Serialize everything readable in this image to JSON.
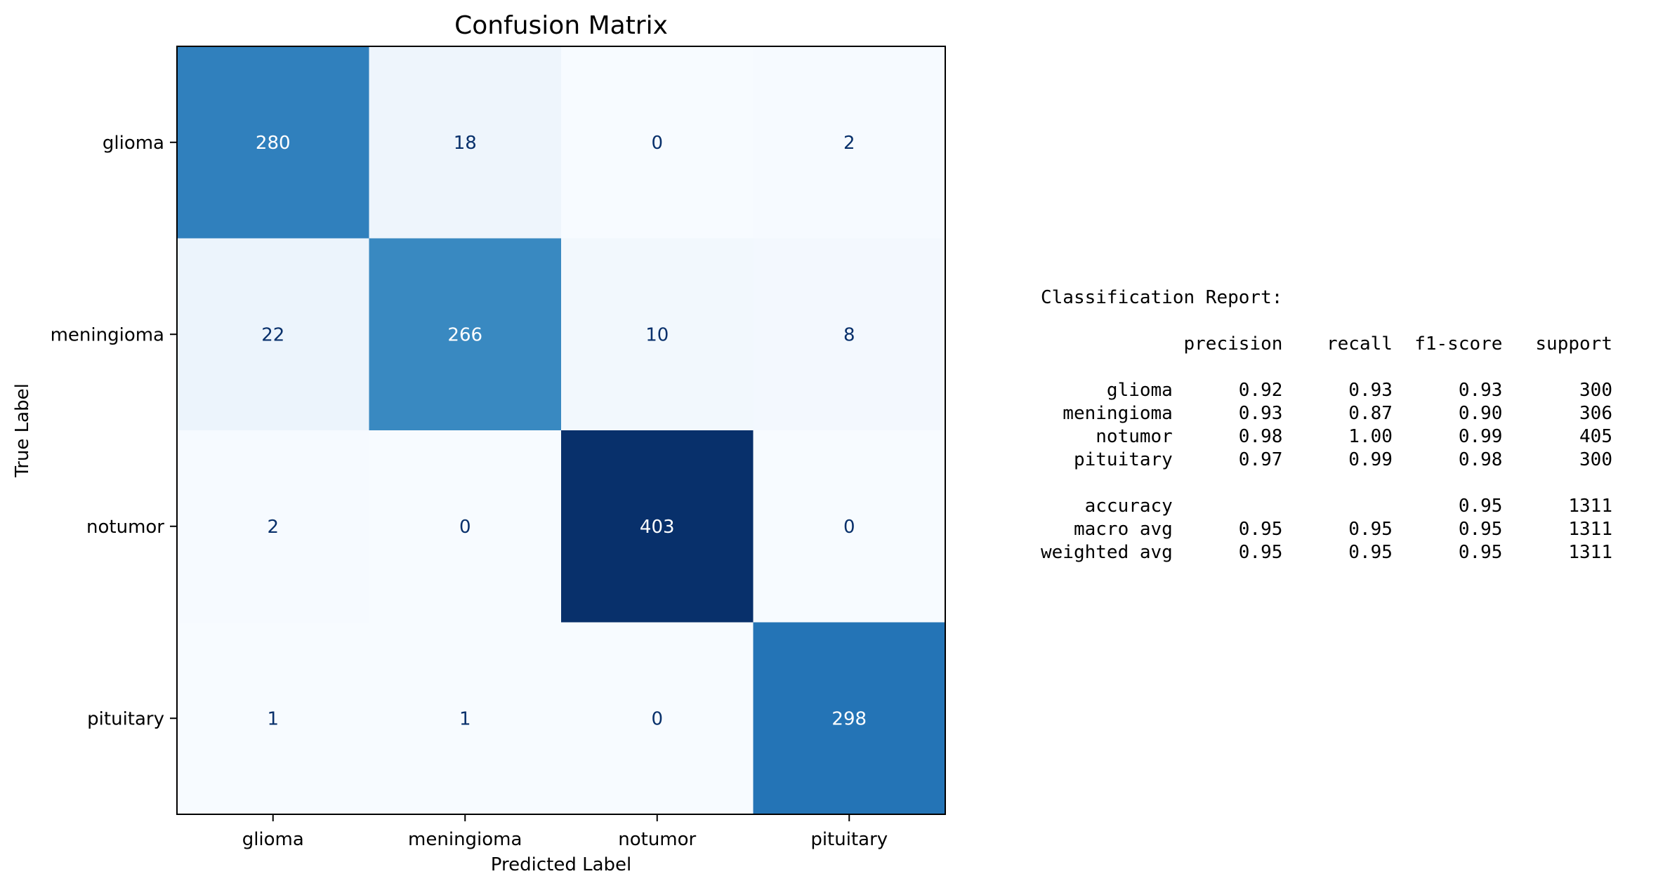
{
  "chart_data": {
    "type": "heatmap",
    "title": "Confusion Matrix",
    "xlabel": "Predicted Label",
    "ylabel": "True Label",
    "x_categories": [
      "glioma",
      "meningioma",
      "notumor",
      "pituitary"
    ],
    "y_categories": [
      "glioma",
      "meningioma",
      "notumor",
      "pituitary"
    ],
    "values": [
      [
        280,
        18,
        0,
        2
      ],
      [
        22,
        266,
        10,
        8
      ],
      [
        2,
        0,
        403,
        0
      ],
      [
        1,
        1,
        0,
        298
      ]
    ],
    "colormap": "Blues",
    "color_range": [
      0,
      403
    ],
    "grid": false
  },
  "report": {
    "title": "Classification Report:",
    "columns": [
      "precision",
      "recall",
      "f1-score",
      "support"
    ],
    "rows": [
      {
        "label": "glioma",
        "precision": "0.92",
        "recall": "0.93",
        "f1": "0.93",
        "support": "300"
      },
      {
        "label": "meningioma",
        "precision": "0.93",
        "recall": "0.87",
        "f1": "0.90",
        "support": "306"
      },
      {
        "label": "notumor",
        "precision": "0.98",
        "recall": "1.00",
        "f1": "0.99",
        "support": "405"
      },
      {
        "label": "pituitary",
        "precision": "0.97",
        "recall": "0.99",
        "f1": "0.98",
        "support": "300"
      }
    ],
    "summary": [
      {
        "label": "accuracy",
        "precision": "",
        "recall": "",
        "f1": "0.95",
        "support": "1311"
      },
      {
        "label": "macro avg",
        "precision": "0.95",
        "recall": "0.95",
        "f1": "0.95",
        "support": "1311"
      },
      {
        "label": "weighted avg",
        "precision": "0.95",
        "recall": "0.95",
        "f1": "0.95",
        "support": "1311"
      }
    ]
  }
}
